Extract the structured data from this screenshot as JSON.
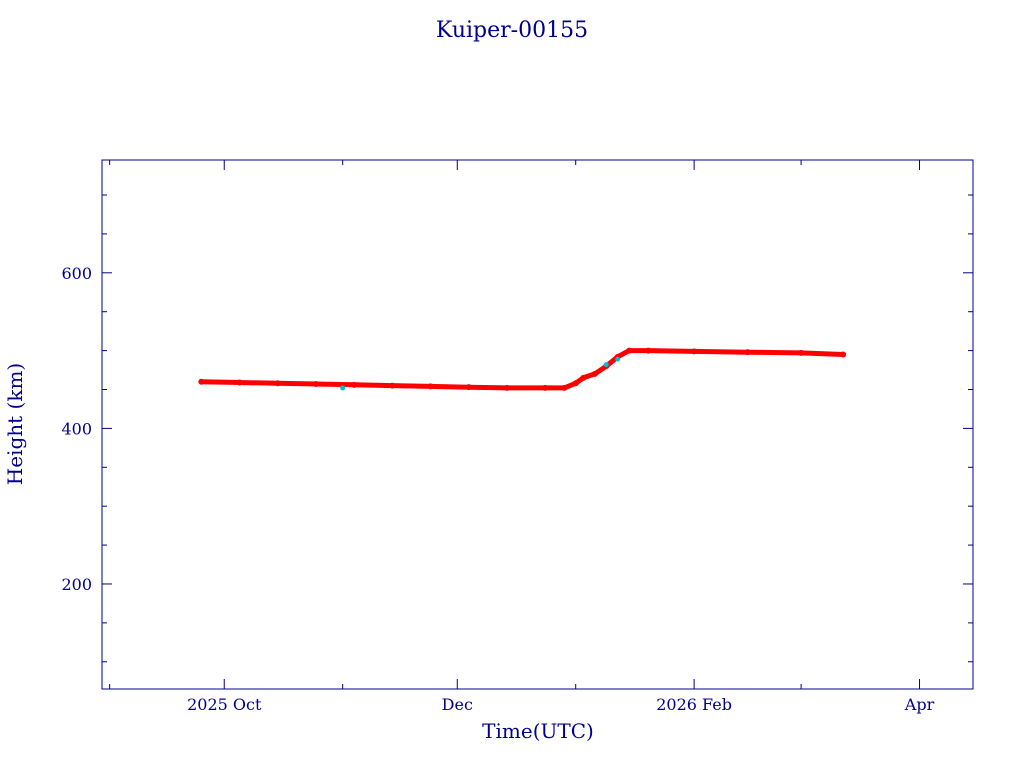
{
  "chart_data": {
    "type": "scatter",
    "title": "Kuiper-00155",
    "xlabel": "Time(UTC)",
    "ylabel": "Height (km)",
    "x_type": "date",
    "xlim": [
      "2025-08-30",
      "2026-04-15"
    ],
    "ylim": [
      65,
      745
    ],
    "x_ticks": [
      {
        "date": "2025-10-01",
        "label": "2025 Oct"
      },
      {
        "date": "2025-12-01",
        "label": "Dec"
      },
      {
        "date": "2026-02-01",
        "label": "2026 Feb"
      },
      {
        "date": "2026-04-01",
        "label": "Apr"
      }
    ],
    "y_ticks": [
      {
        "value": 200,
        "label": "200"
      },
      {
        "value": 400,
        "label": "400"
      },
      {
        "value": 600,
        "label": "600"
      }
    ],
    "grid": false,
    "legend": "none",
    "colors": {
      "axes": "#00008b",
      "primary": "#ff0000",
      "secondary": "#00bcd4"
    },
    "series": [
      {
        "color": "#ff0000",
        "points": [
          [
            "2025-09-25",
            460
          ],
          [
            "2025-10-05",
            459
          ],
          [
            "2025-10-15",
            458
          ],
          [
            "2025-10-25",
            457
          ],
          [
            "2025-11-04",
            456
          ],
          [
            "2025-11-14",
            455
          ],
          [
            "2025-11-24",
            454
          ],
          [
            "2025-12-04",
            453
          ],
          [
            "2025-12-14",
            452
          ],
          [
            "2025-12-24",
            452
          ],
          [
            "2025-12-29",
            452
          ],
          [
            "2026-01-01",
            458
          ],
          [
            "2026-01-03",
            465
          ],
          [
            "2026-01-06",
            470
          ],
          [
            "2026-01-09",
            480
          ],
          [
            "2026-01-12",
            492
          ],
          [
            "2026-01-15",
            500
          ],
          [
            "2026-01-20",
            500
          ],
          [
            "2026-02-01",
            499
          ],
          [
            "2026-02-15",
            498
          ],
          [
            "2026-03-01",
            497
          ],
          [
            "2026-03-12",
            495
          ]
        ]
      },
      {
        "color": "#00bcd4",
        "points": [
          [
            "2025-11-01",
            452
          ],
          [
            "2026-01-09",
            482
          ],
          [
            "2026-01-12",
            489
          ]
        ]
      }
    ]
  }
}
